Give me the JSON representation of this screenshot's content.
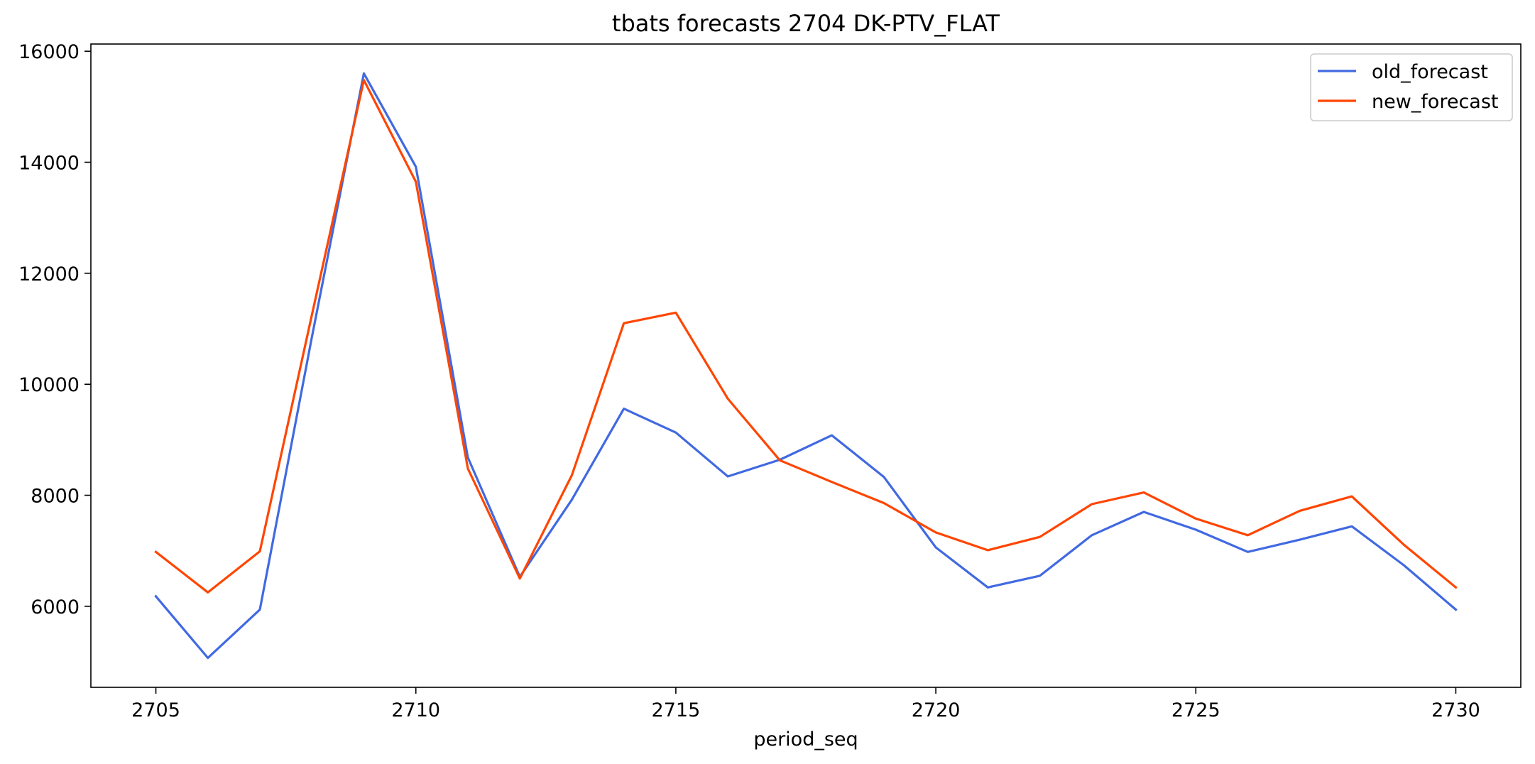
{
  "chart_data": {
    "type": "line",
    "title": "tbats forecasts 2704 DK-PTV_FLAT",
    "xlabel": "period_seq",
    "ylabel": "",
    "x": [
      2705,
      2706,
      2707,
      2708,
      2709,
      2710,
      2711,
      2712,
      2713,
      2714,
      2715,
      2716,
      2717,
      2718,
      2719,
      2720,
      2721,
      2722,
      2723,
      2724,
      2725,
      2726,
      2727,
      2728,
      2729,
      2730
    ],
    "series": [
      {
        "name": "old_forecast",
        "color": "#4169e1",
        "values": [
          6180,
          5070,
          5940,
          10850,
          15600,
          13920,
          8680,
          6530,
          7920,
          9560,
          9130,
          8340,
          8640,
          9080,
          8330,
          7060,
          6340,
          6550,
          7280,
          7700,
          7380,
          6980,
          7200,
          7440,
          6740,
          5940
        ]
      },
      {
        "name": "new_forecast",
        "color": "#ff4500",
        "values": [
          6980,
          6250,
          6990,
          11250,
          15480,
          13650,
          8480,
          6500,
          8360,
          11100,
          11290,
          9740,
          8630,
          8240,
          7860,
          7330,
          7010,
          7250,
          7840,
          8050,
          7580,
          7280,
          7720,
          7980,
          7110,
          6340
        ]
      }
    ],
    "xticks": [
      2705,
      2710,
      2715,
      2720,
      2725,
      2730
    ],
    "yticks": [
      6000,
      8000,
      10000,
      12000,
      14000,
      16000
    ],
    "xlim": [
      2703.75,
      2731.25
    ],
    "ylim": [
      4540,
      16130
    ],
    "legend": "top-right",
    "grid": false
  }
}
